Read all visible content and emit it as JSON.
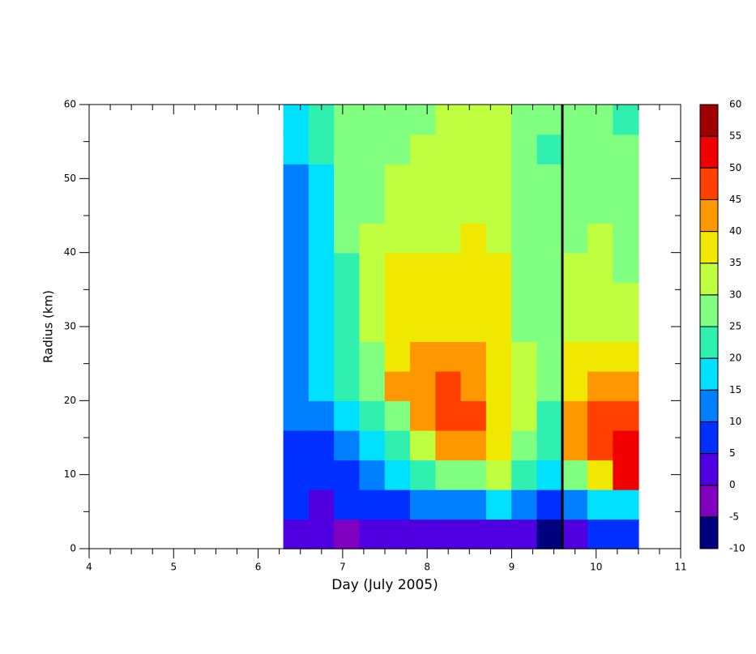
{
  "chart_data": {
    "type": "contour",
    "xlabel": "Day (July 2005)",
    "ylabel": "Radius (km)",
    "xlim": [
      4,
      11
    ],
    "xticks": [
      4,
      5,
      6,
      7,
      8,
      9,
      10,
      11
    ],
    "xminorticks": [
      4.25,
      4.5,
      4.75,
      5.25,
      5.5,
      5.75,
      6.25,
      6.5,
      6.75,
      7.25,
      7.5,
      7.75,
      8.25,
      8.5,
      8.75,
      9.25,
      9.5,
      9.75,
      10.25,
      10.5,
      10.75
    ],
    "ylim": [
      0,
      60
    ],
    "yticks": [
      0,
      10,
      20,
      30,
      40,
      50,
      60
    ],
    "yminorticks": [
      5,
      15,
      25,
      35,
      45,
      55
    ],
    "x": [
      6.45,
      6.75,
      7.05,
      7.35,
      7.65,
      7.95,
      8.25,
      8.55,
      8.85,
      9.15,
      9.45,
      9.75,
      10.05,
      10.35
    ],
    "y": [
      2,
      6,
      10,
      14,
      18,
      22,
      26,
      30,
      34,
      38,
      42,
      46,
      50,
      54,
      58
    ],
    "values": [
      [
        2,
        7,
        7,
        7,
        12,
        12,
        12,
        12,
        12,
        12,
        12,
        12,
        12,
        17,
        17
      ],
      [
        2,
        2,
        7,
        7,
        12,
        17,
        17,
        17,
        17,
        17,
        17,
        17,
        17,
        22,
        22
      ],
      [
        -2,
        7,
        7,
        12,
        17,
        22,
        22,
        22,
        22,
        22,
        27,
        27,
        27,
        27,
        27
      ],
      [
        2,
        7,
        12,
        17,
        22,
        27,
        27,
        32,
        32,
        32,
        32,
        27,
        27,
        27,
        27
      ],
      [
        2,
        7,
        17,
        22,
        27,
        42,
        37,
        37,
        37,
        37,
        32,
        32,
        32,
        27,
        27
      ],
      [
        2,
        12,
        22,
        32,
        42,
        42,
        42,
        37,
        37,
        37,
        32,
        32,
        32,
        32,
        27
      ],
      [
        2,
        12,
        27,
        42,
        47,
        47,
        42,
        37,
        37,
        37,
        32,
        32,
        32,
        32,
        32
      ],
      [
        2,
        12,
        27,
        42,
        47,
        42,
        42,
        37,
        37,
        37,
        37,
        32,
        32,
        32,
        32
      ],
      [
        2,
        17,
        32,
        37,
        37,
        37,
        37,
        37,
        37,
        37,
        32,
        32,
        32,
        32,
        32
      ],
      [
        2,
        12,
        22,
        27,
        32,
        32,
        32,
        27,
        27,
        27,
        27,
        27,
        27,
        27,
        27
      ],
      [
        -7,
        7,
        17,
        22,
        22,
        27,
        27,
        27,
        27,
        27,
        27,
        27,
        27,
        22,
        27
      ],
      [
        2,
        12,
        27,
        42,
        42,
        37,
        37,
        32,
        32,
        32,
        27,
        27,
        27,
        27,
        27
      ],
      [
        7,
        17,
        37,
        47,
        47,
        42,
        37,
        32,
        32,
        32,
        32,
        27,
        27,
        27,
        27
      ],
      [
        7,
        17,
        52,
        52,
        47,
        42,
        37,
        32,
        32,
        27,
        27,
        27,
        27,
        27,
        22
      ]
    ],
    "levels": [
      -10,
      -5,
      0,
      5,
      10,
      15,
      20,
      25,
      30,
      35,
      40,
      45,
      50,
      55,
      60
    ],
    "colors": [
      "#00007f",
      "#7f00bf",
      "#5000e0",
      "#0030ff",
      "#0080ff",
      "#00e0ff",
      "#30f0b0",
      "#80ff80",
      "#c0ff40",
      "#f0e800",
      "#ff9800",
      "#ff4000",
      "#f00000",
      "#a00000"
    ],
    "vline": 9.6
  }
}
